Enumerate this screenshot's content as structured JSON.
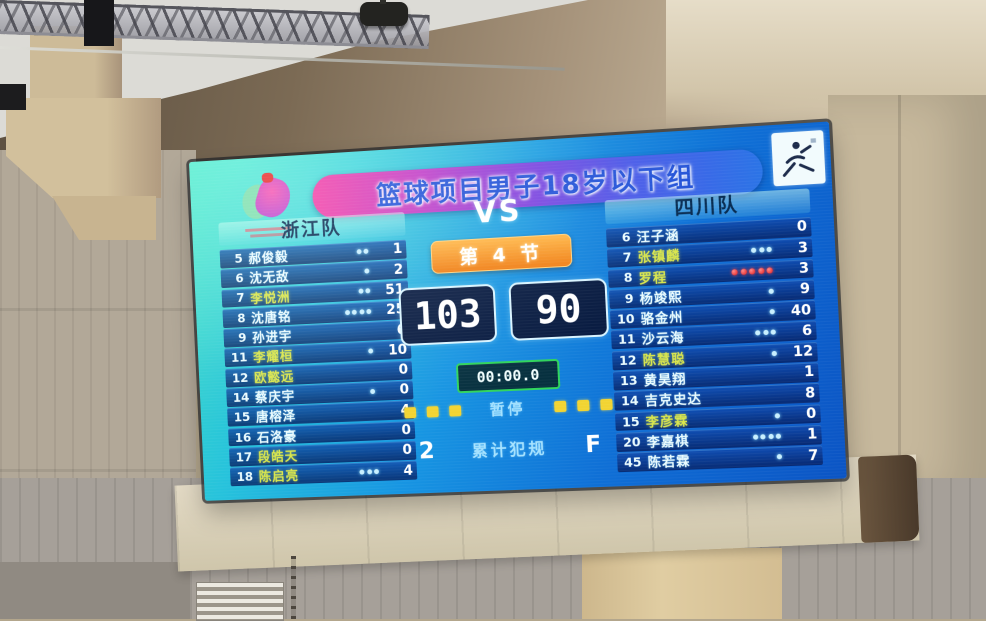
{
  "scoreboard": {
    "title": "篮球项目男子18岁以下组",
    "vs_label": "VS",
    "period": "第 4 节",
    "timer": "00:00.0",
    "timeout_label": "暂停",
    "team_fouls_label": "累计犯规",
    "home": {
      "team": "浙江队",
      "score": "103",
      "team_fouls": "2",
      "timeouts": 3,
      "players": [
        {
          "num": "5",
          "name": "郝俊毅",
          "fouls": 2,
          "pts": "1"
        },
        {
          "num": "6",
          "name": "沈无敌",
          "fouls": 1,
          "pts": "2"
        },
        {
          "num": "7",
          "name": "李悦洲",
          "fouls": 2,
          "pts": "51",
          "active": true
        },
        {
          "num": "8",
          "name": "沈唐铭",
          "fouls": 4,
          "pts": "25"
        },
        {
          "num": "9",
          "name": "孙进宇",
          "fouls": 0,
          "pts": "6"
        },
        {
          "num": "11",
          "name": "李耀桓",
          "fouls": 1,
          "pts": "10",
          "active": true
        },
        {
          "num": "12",
          "name": "欧懿远",
          "fouls": 0,
          "pts": "0",
          "active": true
        },
        {
          "num": "14",
          "name": "蔡庆宇",
          "fouls": 1,
          "pts": "0"
        },
        {
          "num": "15",
          "name": "唐榕泽",
          "fouls": 0,
          "pts": "4"
        },
        {
          "num": "16",
          "name": "石洛豪",
          "fouls": 0,
          "pts": "0"
        },
        {
          "num": "17",
          "name": "段皓天",
          "fouls": 0,
          "pts": "0",
          "active": true
        },
        {
          "num": "18",
          "name": "陈启亮",
          "fouls": 3,
          "pts": "4",
          "active": true
        }
      ]
    },
    "away": {
      "team": "四川队",
      "score": "90",
      "team_fouls": "F",
      "timeouts": 3,
      "players": [
        {
          "num": "6",
          "name": "汪子涵",
          "fouls": 0,
          "pts": "0"
        },
        {
          "num": "7",
          "name": "张镇麟",
          "fouls": 3,
          "pts": "3",
          "active": true
        },
        {
          "num": "8",
          "name": "罗程",
          "fouls": 5,
          "pts": "3",
          "active": true,
          "fouled_out": true
        },
        {
          "num": "9",
          "name": "杨竣熙",
          "fouls": 1,
          "pts": "9"
        },
        {
          "num": "10",
          "name": "骆金州",
          "fouls": 1,
          "pts": "40"
        },
        {
          "num": "11",
          "name": "沙云海",
          "fouls": 3,
          "pts": "6"
        },
        {
          "num": "12",
          "name": "陈慧聪",
          "fouls": 1,
          "pts": "12",
          "active": true
        },
        {
          "num": "13",
          "name": "黄昊翔",
          "fouls": 0,
          "pts": "1"
        },
        {
          "num": "14",
          "name": "吉克史达",
          "fouls": 0,
          "pts": "8"
        },
        {
          "num": "15",
          "name": "李彦霖",
          "fouls": 1,
          "pts": "0",
          "active": true
        },
        {
          "num": "20",
          "name": "李嘉棋",
          "fouls": 4,
          "pts": "1"
        },
        {
          "num": "45",
          "name": "陈若霖",
          "fouls": 1,
          "pts": "7"
        }
      ]
    },
    "colors": {
      "banner_pink": "#f23da6",
      "banner_blue": "#2b74e6",
      "title_text": "#2453d8",
      "board_cyan": "#35d8c2",
      "board_blue": "#0b54c4",
      "highlight_name": "#d9e64c",
      "foul_dot": "#c8efff",
      "foul_dot_red": "#e01414",
      "period_orange": "#f07d12",
      "timer_border_green": "#2fd45c",
      "timeout_square": "#f2d432",
      "score_text": "#ffffff"
    }
  }
}
